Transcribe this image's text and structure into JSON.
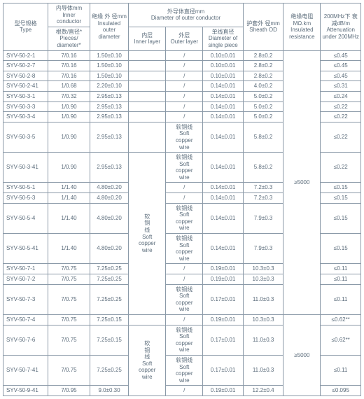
{
  "headers": {
    "type_cn": "型号规格",
    "type_en": "Type",
    "inner_cond_cn": "内导体mm",
    "inner_cond_en": "Inner conductor",
    "pieces_cn": "根数/直径*",
    "pieces_en": "Pieces/\ndiameter*",
    "ins_cn": "绝缘 外\n径mm",
    "ins_en": "Insulated\nouter\ndiameter",
    "outer_cn": "外导体直径mm",
    "outer_en": "Diameter of outer conductor",
    "inner_layer_cn": "内层",
    "inner_layer_en": "Inner layer",
    "outer_layer_cn": "外层",
    "outer_layer_en": "Outer layer",
    "single_cn": "单线直径",
    "single_en": "Diameter of\nsingle piece",
    "sheath_cn": "护套外\n径mm",
    "sheath_en": "Sheath OD",
    "res_cn": "绝缘电阻\nMΩ.km",
    "res_en": "Insulated\nresistance",
    "atten_cn": "200MHz下\n衰减dB/m",
    "atten_en": "Attenuation\nunder\n200MHz"
  },
  "soft_copper": {
    "cn": "软铜线",
    "cn_v": "软\n铜\n线",
    "en": "Soft\ncopper\nwire"
  },
  "res1": "≥5000",
  "res2": "≥5000",
  "rows": [
    {
      "t": "SYV-50-2-1",
      "p": "7/0.16",
      "i": "1.50±0.10",
      "il": "",
      "ol": "/",
      "sp": "0.10±0.01",
      "sh": "2.8±0.2",
      "a": "≤0.45"
    },
    {
      "t": "SYV-50-2-7",
      "p": "7/0.16",
      "i": "1.50±0.10",
      "il": "",
      "ol": "/",
      "sp": "0.10±0.01",
      "sh": "2.8±0.2",
      "a": "≤0.45"
    },
    {
      "t": "SYV-50-2-8",
      "p": "7/0.16",
      "i": "1.50±0.10",
      "il": "",
      "ol": "/",
      "sp": "0.10±0.01",
      "sh": "2.8±0.2",
      "a": "≤0.45"
    },
    {
      "t": "SYV-50-2-41",
      "p": "1/0.68",
      "i": "2.20±0.10",
      "il": "",
      "ol": "/",
      "sp": "0.14±0.01",
      "sh": "4.0±0.2",
      "a": "≤0.31"
    },
    {
      "t": "SYV-50-3-1",
      "p": "7/0.32",
      "i": "2.95±0.13",
      "il": "",
      "ol": "/",
      "sp": "0.14±0.01",
      "sh": "5.0±0.2",
      "a": "≤0.24"
    },
    {
      "t": "SYV-50-3-3",
      "p": "1/0.90",
      "i": "2.95±0.13",
      "il": "",
      "ol": "/",
      "sp": "0.14±0.01",
      "sh": "5.0±0.2",
      "a": "≤0.22"
    },
    {
      "t": "SYV-50-3-4",
      "p": "1/0.90",
      "i": "2.95±0.13",
      "il": "",
      "ol": "/",
      "sp": "0.14±0.01",
      "sh": "5.0±0.2",
      "a": "≤0.22"
    },
    {
      "t": "SYV-50-3-5",
      "p": "1/0.90",
      "i": "2.95±0.13",
      "il": "",
      "ol": "SCW",
      "sp": "0.14±0.01",
      "sh": "5.8±0.2",
      "a": "≤0.22"
    },
    {
      "t": "SYV-50-3-41",
      "p": "1/0.90",
      "i": "2.95±0.13",
      "il": "SCW_START",
      "ol": "SCW",
      "sp": "0.14±0.01",
      "sh": "5.8±0.2",
      "a": "≤0.22"
    },
    {
      "t": "SYV-50-5-1",
      "p": "1/1.40",
      "i": "4.80±0.20",
      "il": "",
      "ol": "/",
      "sp": "0.14±0.01",
      "sh": "7.2±0.3",
      "a": "≤0.15"
    },
    {
      "t": "SYV-50-5-3",
      "p": "1/1.40",
      "i": "4.80±0.20",
      "il": "",
      "ol": "/",
      "sp": "0.14±0.01",
      "sh": "7.2±0.3",
      "a": "≤0.15"
    },
    {
      "t": "SYV-50-5-4",
      "p": "1/1.40",
      "i": "4.80±0.20",
      "il": "",
      "ol": "SCW",
      "sp": "0.14±0.01",
      "sh": "7.9±0.3",
      "a": "≤0.15"
    },
    {
      "t": "SYV-50-5-41",
      "p": "1/1.40",
      "i": "4.80±0.20",
      "il": "",
      "ol": "SCW",
      "sp": "0.14±0.01",
      "sh": "7.9±0.3",
      "a": "≤0.15"
    },
    {
      "t": "SYV-50-7-1",
      "p": "7/0.75",
      "i": "7.25±0.25",
      "il": "",
      "ol": "/",
      "sp": "0.19±0.01",
      "sh": "10.3±0.3",
      "a": "≤0.11"
    },
    {
      "t": "SYV-50-7-2",
      "p": "7/0.75",
      "i": "7.25±0.25",
      "il": "",
      "ol": "/",
      "sp": "0.19±0.01",
      "sh": "10.3±0.3",
      "a": "≤0.11"
    },
    {
      "t": "SYV-50-7-3",
      "p": "7/0.75",
      "i": "7.25±0.25",
      "il": "",
      "ol": "SCW",
      "sp": "0.17±0.01",
      "sh": "11.0±0.3",
      "a": "≤0.11"
    },
    {
      "t": "SYV-50-7-4",
      "p": "7/0.75",
      "i": "7.25±0.15",
      "il": "",
      "ol": "/",
      "sp": "0.19±0.01",
      "sh": "10.3±0.3",
      "a": "≤0.62**"
    },
    {
      "t": "SYV-50-7-6",
      "p": "7/0.75",
      "i": "7.25±0.15",
      "il": "SCW_START2",
      "ol": "SCW",
      "sp": "0.17±0.01",
      "sh": "11.0±0.3",
      "a": "≤0.62**"
    },
    {
      "t": "SYV-50-7-41",
      "p": "7/0.75",
      "i": "7.25±0.25",
      "il": "",
      "ol": "SCW",
      "sp": "0.17±0.01",
      "sh": "11.0±0.3",
      "a": "≤0.11"
    },
    {
      "t": "SYV-50-9-41",
      "p": "7/0.95",
      "i": "9.0±0.30",
      "il": "",
      "ol": "/",
      "sp": "0.19±0.01",
      "sh": "12.2±0.4",
      "a": "≤0.095"
    }
  ]
}
